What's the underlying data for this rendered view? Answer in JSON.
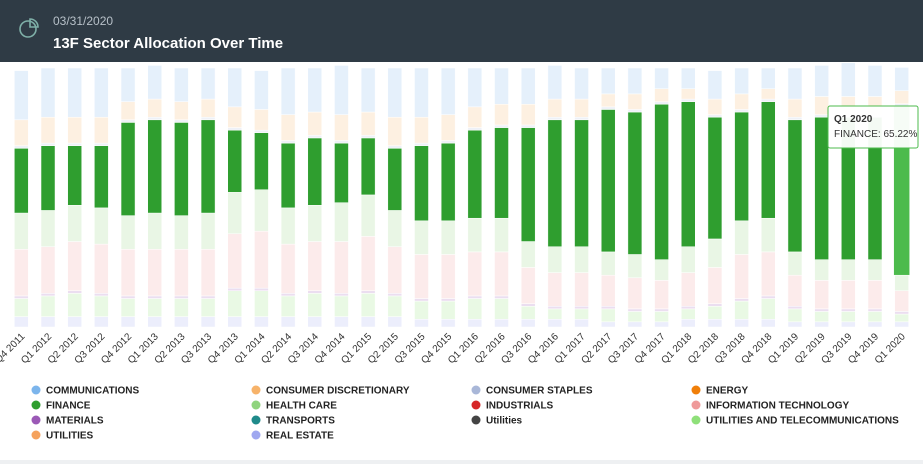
{
  "chart_data": {
    "type": "stacked_bar",
    "subtitle": "03/31/2020",
    "title": "13F Sector Allocation Over Time",
    "categories": [
      "Q4 2011",
      "Q1 2012",
      "Q2 2012",
      "Q3 2012",
      "Q4 2012",
      "Q1 2013",
      "Q2 2013",
      "Q3 2013",
      "Q4 2013",
      "Q1 2014",
      "Q2 2014",
      "Q3 2014",
      "Q4 2014",
      "Q1 2015",
      "Q2 2015",
      "Q3 2015",
      "Q4 2015",
      "Q1 2016",
      "Q2 2016",
      "Q3 2016",
      "Q4 2016",
      "Q1 2017",
      "Q2 2017",
      "Q3 2017",
      "Q4 2017",
      "Q1 2018",
      "Q2 2018",
      "Q3 2018",
      "Q4 2018",
      "Q1 2019",
      "Q2 2019",
      "Q3 2019",
      "Q4 2019",
      "Q1 2020"
    ],
    "ylim": [
      0,
      100
    ],
    "series": [
      {
        "name": "COMMUNICATIONS",
        "color": "#7cb5ec",
        "values": [
          19,
          19,
          19,
          19,
          13,
          13,
          13,
          12,
          15,
          15,
          18,
          17,
          19,
          17,
          19,
          19,
          18,
          15,
          14,
          14,
          13,
          12,
          10,
          10,
          8,
          8,
          11,
          10,
          8,
          12,
          12,
          13,
          12,
          9
        ]
      },
      {
        "name": "CONSUMER DISCRETIONARY",
        "color": "#f7b36a",
        "values": [
          10,
          10,
          10,
          10,
          7,
          7,
          7,
          7,
          8,
          8,
          10,
          9,
          10,
          9,
          11,
          10,
          10,
          8,
          8,
          8,
          7,
          7,
          5,
          6,
          5,
          4,
          6,
          6,
          4,
          7,
          7,
          7,
          7,
          5
        ]
      },
      {
        "name": "CONSUMER STAPLES",
        "color": "#a9b7d8",
        "values": [
          1,
          1,
          1,
          1,
          1,
          1,
          1,
          1,
          1,
          1,
          1,
          1,
          1,
          1,
          1,
          1,
          1,
          1,
          1,
          1,
          1,
          1,
          1,
          1,
          1,
          1,
          1,
          1,
          1,
          1,
          1,
          1,
          1,
          1
        ]
      },
      {
        "name": "ENERGY",
        "color": "#f07f09",
        "values": [
          0,
          0,
          0,
          0,
          0,
          0,
          0,
          0,
          0,
          0,
          0,
          0,
          0,
          0,
          0,
          0,
          0,
          0,
          0,
          0,
          0,
          0,
          0,
          0,
          0,
          0,
          0,
          0,
          0,
          0,
          0,
          0,
          0,
          0
        ]
      },
      {
        "name": "FINANCE",
        "color": "#2f9e2f",
        "values": [
          25,
          25,
          23,
          24,
          36,
          36,
          36,
          36,
          24,
          22,
          25,
          26,
          23,
          22,
          24,
          29,
          30,
          34,
          35,
          44,
          49,
          49,
          55,
          55,
          60,
          56,
          47,
          42,
          45,
          51,
          55,
          55,
          55,
          65.22
        ]
      },
      {
        "name": "HEALTH CARE",
        "color": "#90d47e",
        "values": [
          14,
          14,
          14,
          14,
          13,
          14,
          13,
          14,
          16,
          16,
          14,
          14,
          15,
          16,
          14,
          13,
          13,
          13,
          13,
          10,
          10,
          10,
          9,
          9,
          8,
          10,
          11,
          13,
          13,
          9,
          8,
          8,
          8,
          6
        ]
      },
      {
        "name": "INDUSTRIALS",
        "color": "#d62728",
        "values": [
          0,
          0,
          0,
          0,
          0,
          0,
          0,
          0,
          0,
          0,
          0,
          0,
          0,
          0,
          0,
          0,
          0,
          0,
          0,
          0,
          0,
          0,
          0,
          0,
          0,
          0,
          0,
          0,
          0,
          0,
          0,
          0,
          0,
          0
        ]
      },
      {
        "name": "INFORMATION TECHNOLOGY",
        "color": "#ef9a9a",
        "values": [
          18,
          18,
          19,
          19,
          18,
          18,
          18,
          18,
          21,
          22,
          19,
          19,
          20,
          21,
          18,
          17,
          17,
          17,
          17,
          14,
          13,
          13,
          12,
          12,
          11,
          13,
          14,
          17,
          17,
          12,
          11,
          11,
          11,
          8
        ]
      },
      {
        "name": "MATERIALS",
        "color": "#9b59b6",
        "values": [
          1,
          1,
          1,
          1,
          1,
          1,
          1,
          1,
          1,
          1,
          1,
          1,
          1,
          1,
          1,
          1,
          1,
          1,
          1,
          1,
          1,
          1,
          1,
          1,
          1,
          1,
          1,
          1,
          1,
          1,
          1,
          1,
          1,
          1
        ]
      },
      {
        "name": "TRANSPORTS",
        "color": "#1f8a8a",
        "values": [
          0,
          0,
          0,
          0,
          0,
          0,
          0,
          0,
          0,
          0,
          0,
          0,
          0,
          0,
          0,
          0,
          0,
          0,
          0,
          0,
          0,
          0,
          0,
          0,
          0,
          0,
          0,
          0,
          0,
          0,
          0,
          0,
          0,
          0
        ]
      },
      {
        "name": "Utilities",
        "color": "#444444",
        "values": [
          0,
          0,
          0,
          0,
          0,
          0,
          0,
          0,
          0,
          0,
          0,
          0,
          0,
          0,
          0,
          0,
          0,
          0,
          0,
          0,
          0,
          0,
          0,
          0,
          0,
          0,
          0,
          0,
          0,
          0,
          0,
          0,
          0,
          0
        ]
      },
      {
        "name": "UTILITIES AND TELECOMMUNICATIONS",
        "color": "#8fe07a",
        "values": [
          7,
          8,
          9,
          8,
          7,
          7,
          7,
          7,
          10,
          10,
          8,
          9,
          8,
          9,
          8,
          7,
          7,
          8,
          8,
          5,
          4,
          4,
          5,
          4,
          4,
          4,
          5,
          7,
          8,
          5,
          4,
          4,
          4,
          3
        ]
      },
      {
        "name": "UTILITIES",
        "color": "#f5a25d",
        "values": [
          0,
          0,
          0,
          0,
          0,
          0,
          0,
          0,
          0,
          0,
          0,
          0,
          0,
          0,
          0,
          0,
          0,
          0,
          0,
          0,
          0,
          0,
          0,
          0,
          0,
          0,
          0,
          0,
          0,
          0,
          0,
          0,
          0,
          0
        ]
      },
      {
        "name": "REAL ESTATE",
        "color": "#9fa8f0",
        "values": [
          4,
          4,
          4,
          4,
          4,
          4,
          4,
          4,
          4,
          4,
          4,
          4,
          4,
          4,
          4,
          3,
          3,
          3,
          3,
          3,
          3,
          3,
          2,
          2,
          2,
          3,
          3,
          3,
          3,
          2,
          2,
          2,
          2,
          2
        ]
      }
    ],
    "highlight": {
      "series": 4,
      "point": 33,
      "color": "#4cbb4c"
    },
    "tooltip": {
      "title": "Q1 2020",
      "text": "FINANCE: 65.22%"
    }
  }
}
